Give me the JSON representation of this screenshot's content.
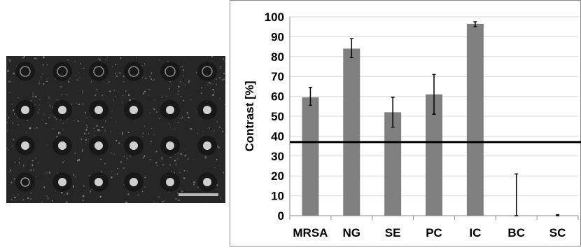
{
  "figure": {
    "colors": {
      "bar": "#808080",
      "grid": "#d9d9d9",
      "frame": "#8c8c8c",
      "threshold": "#000000"
    }
  },
  "micrograph": {
    "description_icon": "microarray-image",
    "scale_bar_color": "#b8b8b8"
  },
  "chart_data": {
    "type": "bar",
    "title": "",
    "xlabel": "",
    "ylabel": "Contrast [%]",
    "ylim": [
      0,
      100
    ],
    "yticks": [
      0,
      10,
      20,
      30,
      40,
      50,
      60,
      70,
      80,
      90,
      100
    ],
    "categories": [
      "MRSA",
      "NG",
      "SE",
      "PC",
      "IC",
      "BC",
      "SC"
    ],
    "series": [
      {
        "values": [
          59.5,
          84,
          52,
          61,
          96.5,
          0,
          0
        ],
        "error_low": [
          55.5,
          79.5,
          44.5,
          51,
          95,
          0,
          0
        ],
        "error_high": [
          64.5,
          89,
          59.5,
          71,
          97.5,
          21,
          0.5
        ]
      }
    ],
    "threshold_line": 37,
    "grid": true,
    "legend": "none"
  }
}
